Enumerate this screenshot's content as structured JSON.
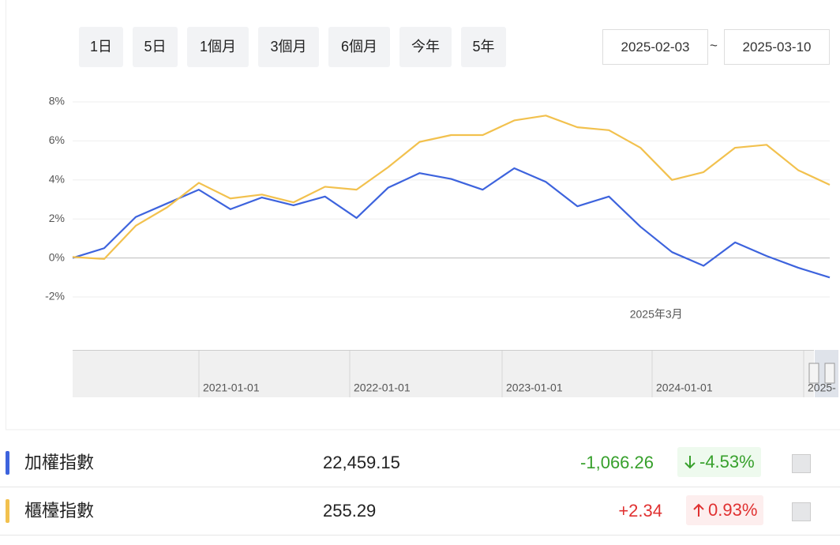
{
  "range_buttons": [
    "1日",
    "5日",
    "1個月",
    "3個月",
    "6個月",
    "今年",
    "5年"
  ],
  "date_range": {
    "start": "2025-02-03",
    "separator": "~",
    "end": "2025-03-10"
  },
  "chart_data": {
    "type": "line",
    "categories": [
      null,
      null,
      null,
      null,
      null,
      null,
      null,
      null,
      null,
      null,
      null,
      null,
      null,
      null,
      null,
      null,
      null,
      null,
      null,
      "2025年3月",
      null,
      null,
      null,
      null,
      null
    ],
    "series": [
      {
        "name": "加權指數",
        "color": "#3d63dd",
        "values": [
          0,
          0.5,
          2.1,
          2.8,
          3.5,
          2.5,
          3.1,
          2.7,
          3.15,
          2.05,
          3.6,
          4.35,
          4.05,
          3.5,
          4.6,
          3.9,
          2.65,
          3.15,
          1.6,
          0.3,
          -0.4,
          0.8,
          0.1,
          -0.5,
          -1.0
        ]
      },
      {
        "name": "櫃檯指數",
        "color": "#f2c14e",
        "values": [
          0.05,
          -0.05,
          1.65,
          2.6,
          3.85,
          3.05,
          3.25,
          2.85,
          3.65,
          3.5,
          4.65,
          5.95,
          6.3,
          6.3,
          7.05,
          7.3,
          6.7,
          6.55,
          5.65,
          4.0,
          4.4,
          5.65,
          5.8,
          4.5,
          3.75
        ]
      }
    ],
    "ylim": [
      -2,
      8
    ],
    "yticks": [
      {
        "value": -2,
        "label": "-2%"
      },
      {
        "value": 0,
        "label": "0%"
      },
      {
        "value": 2,
        "label": "2%"
      },
      {
        "value": 4,
        "label": "4%"
      },
      {
        "value": 6,
        "label": "6%"
      },
      {
        "value": 8,
        "label": "8%"
      }
    ],
    "grid": true,
    "navigator_labels": [
      "2021-01-01",
      "2022-01-01",
      "2023-01-01",
      "2024-01-01",
      "2025-"
    ]
  },
  "table": {
    "rows": [
      {
        "name": "加權指數",
        "value": "22,459.15",
        "change": "-1,066.26",
        "percent": "-4.53%",
        "direction": "down"
      },
      {
        "name": "櫃檯指數",
        "value": "255.29",
        "change": "+2.34",
        "percent": "0.93%",
        "direction": "up"
      }
    ]
  }
}
